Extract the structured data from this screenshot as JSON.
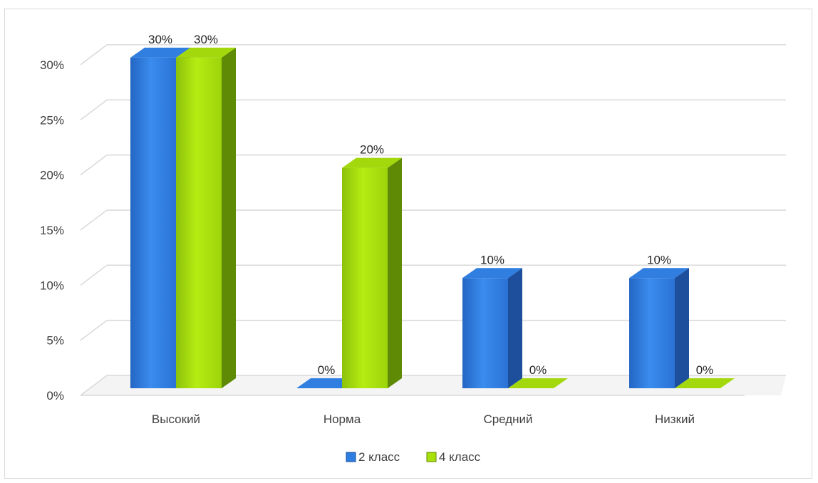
{
  "chart_data": {
    "type": "bar",
    "categories": [
      "Высокий",
      "Норма",
      "Средний",
      "Низкий"
    ],
    "series": [
      {
        "name": "2 класс",
        "values": [
          30,
          0,
          10,
          10
        ],
        "color": "#2e7de0"
      },
      {
        "name": "4 класс",
        "values": [
          30,
          20,
          0,
          0
        ],
        "color": "#a8e00c"
      }
    ],
    "y_ticks": [
      "0%",
      "5%",
      "10%",
      "15%",
      "20%",
      "25%",
      "30%"
    ],
    "data_labels": [
      [
        "30%",
        "0%",
        "10%",
        "10%"
      ],
      [
        "30%",
        "20%",
        "0%",
        "0%"
      ]
    ],
    "ylim": [
      0,
      30
    ],
    "grid": true,
    "legend_position": "bottom",
    "style": "3d-clustered-column"
  }
}
